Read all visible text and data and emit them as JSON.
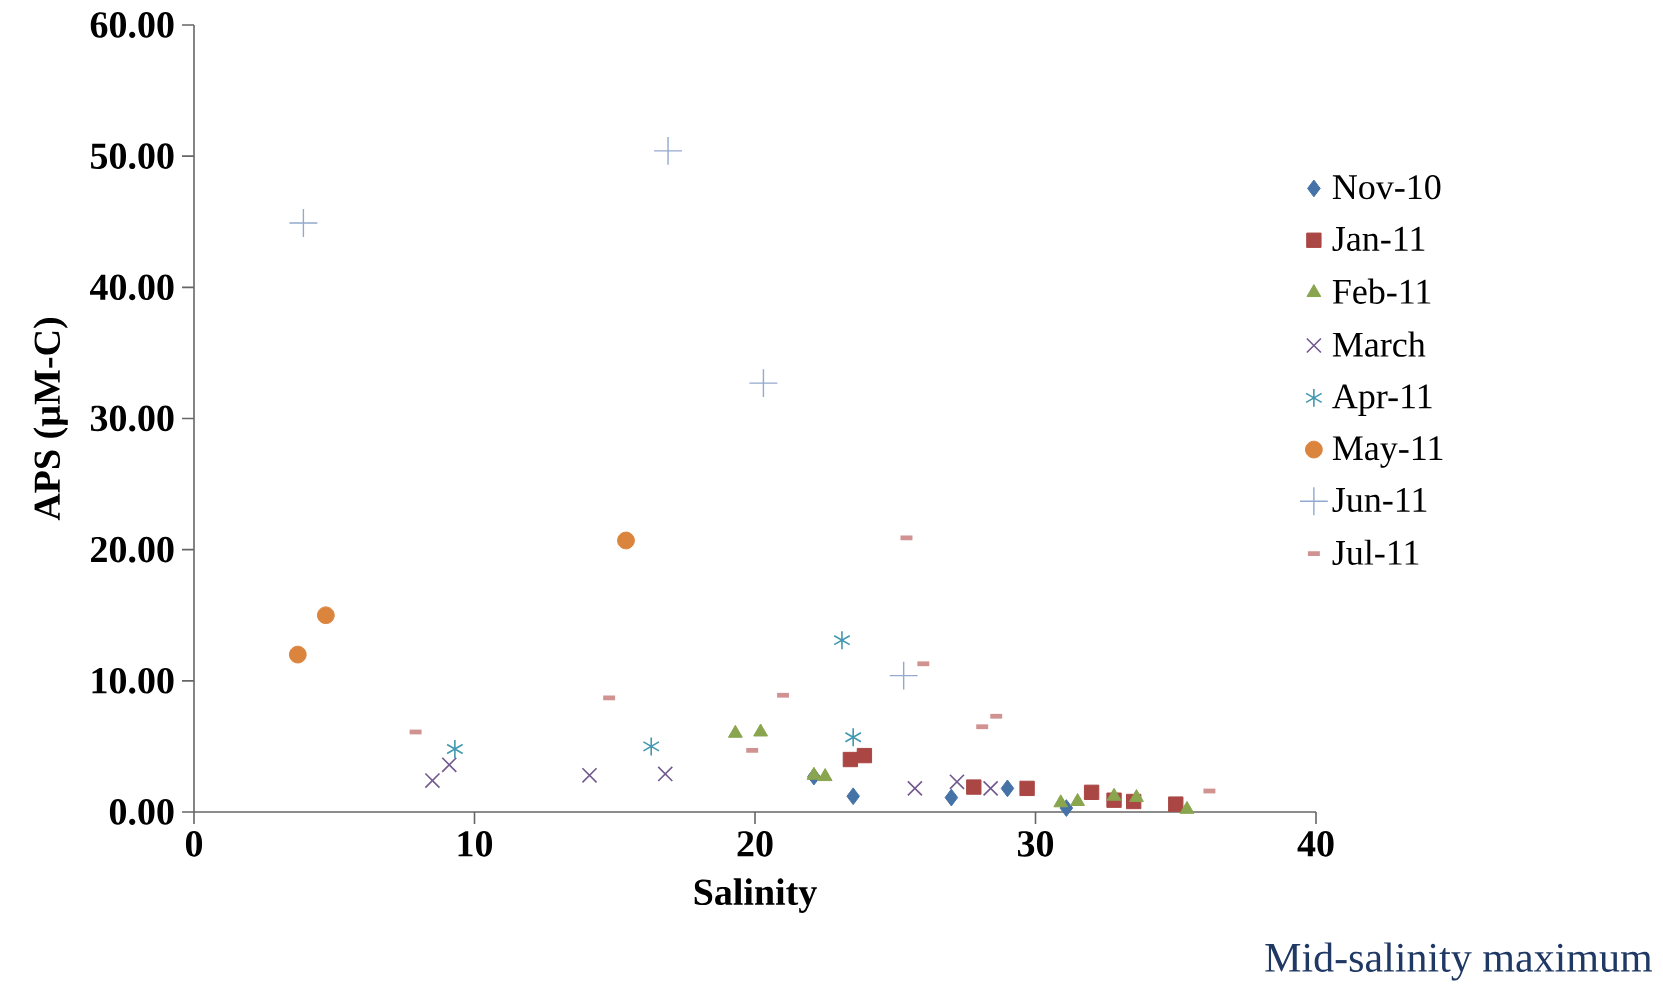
{
  "chart_data": {
    "type": "scatter",
    "xlabel": "Salinity",
    "ylabel": "APS (µM-C)",
    "xlim": [
      0,
      40
    ],
    "xticks": [
      0,
      10,
      20,
      30,
      40
    ],
    "ylim": [
      0,
      60
    ],
    "yticks": [
      {
        "value": 0,
        "label": "0.00"
      },
      {
        "value": 10,
        "label": "10.00"
      },
      {
        "value": 20,
        "label": "20.00"
      },
      {
        "value": 30,
        "label": "30.00"
      },
      {
        "value": 40,
        "label": "40.00"
      },
      {
        "value": 50,
        "label": "50.00"
      },
      {
        "value": 60,
        "label": "60.00"
      }
    ],
    "grid": false,
    "legend": "right",
    "annotations": [
      "Mid-salinity maximum"
    ],
    "series": [
      {
        "name": "Nov-10",
        "color": "#4572a7",
        "marker": "diamond",
        "x": [
          22.1,
          23.5,
          27.0,
          29.0,
          31.1
        ],
        "values": [
          2.7,
          1.2,
          1.1,
          1.8,
          0.3
        ]
      },
      {
        "name": "Jan-11",
        "color": "#aa4643",
        "marker": "square",
        "x": [
          23.4,
          23.9,
          27.8,
          29.7,
          32.0,
          32.8,
          33.5,
          35.0
        ],
        "values": [
          4.0,
          4.3,
          1.9,
          1.8,
          1.5,
          0.9,
          0.8,
          0.6
        ]
      },
      {
        "name": "Feb-11",
        "color": "#89a54e",
        "marker": "triangle",
        "x": [
          19.3,
          20.2,
          22.1,
          22.5,
          30.9,
          31.5,
          32.8,
          33.6,
          35.4
        ],
        "values": [
          6.0,
          6.1,
          2.8,
          2.7,
          0.7,
          0.8,
          1.2,
          1.1,
          0.2
        ]
      },
      {
        "name": "March",
        "color": "#71588f",
        "marker": "cross",
        "x": [
          8.5,
          9.1,
          14.1,
          16.8,
          25.7,
          27.2,
          28.4
        ],
        "values": [
          2.4,
          3.6,
          2.8,
          2.9,
          1.8,
          2.3,
          1.8
        ]
      },
      {
        "name": "Apr-11",
        "color": "#4198af",
        "x": [
          9.3,
          16.3,
          23.1,
          23.5
        ],
        "values": [
          4.8,
          5.0,
          13.1,
          5.7
        ]
      },
      {
        "name": "May-11",
        "color": "#db843d",
        "marker": "circle",
        "x": [
          3.7,
          4.7,
          15.4
        ],
        "values": [
          12.0,
          15.0,
          20.7
        ]
      },
      {
        "name": "Jun-11",
        "color": "#93a9cf",
        "x": [
          3.9,
          16.9,
          20.3,
          25.3
        ],
        "values": [
          44.9,
          50.4,
          32.7,
          10.4
        ]
      },
      {
        "name": "Jul-11",
        "color": "#d19392",
        "x": [
          7.9,
          14.8,
          19.9,
          21.0,
          25.4,
          26.0,
          28.1,
          28.6,
          36.2
        ],
        "values": [
          6.1,
          8.7,
          4.7,
          8.9,
          20.9,
          11.3,
          6.5,
          7.3,
          1.6
        ]
      }
    ]
  }
}
